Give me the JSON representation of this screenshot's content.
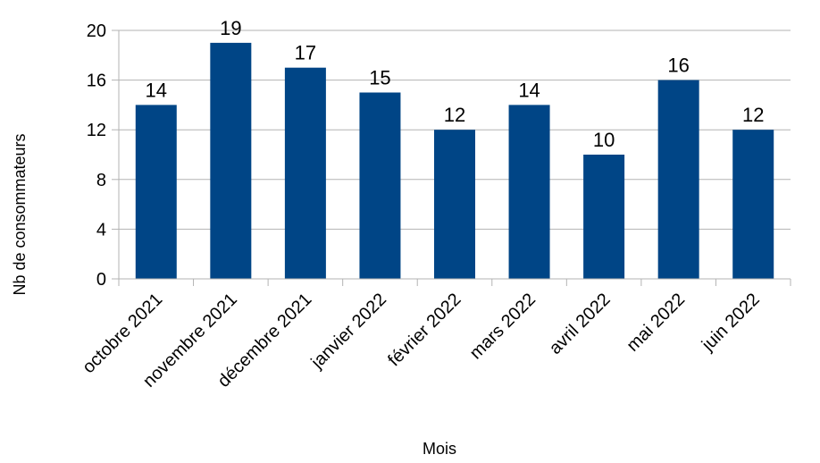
{
  "chart_data": {
    "type": "bar",
    "title": "",
    "xlabel": "Mois",
    "ylabel": "Nb de consommateurs",
    "categories": [
      "octobre 2021",
      "novembre 2021",
      "décembre 2021",
      "janvier 2022",
      "février 2022",
      "mars 2022",
      "avril 2022",
      "mai 2022",
      "juin 2022"
    ],
    "values": [
      14,
      19,
      17,
      15,
      12,
      14,
      10,
      16,
      12
    ],
    "ylim": [
      0,
      20
    ],
    "yticks": [
      0,
      4,
      8,
      12,
      16,
      20
    ],
    "grid": true,
    "legend": "none",
    "colors": {
      "bar": "#004586",
      "grid": "#b3b3b3",
      "axis": "#b3b3b3"
    }
  }
}
